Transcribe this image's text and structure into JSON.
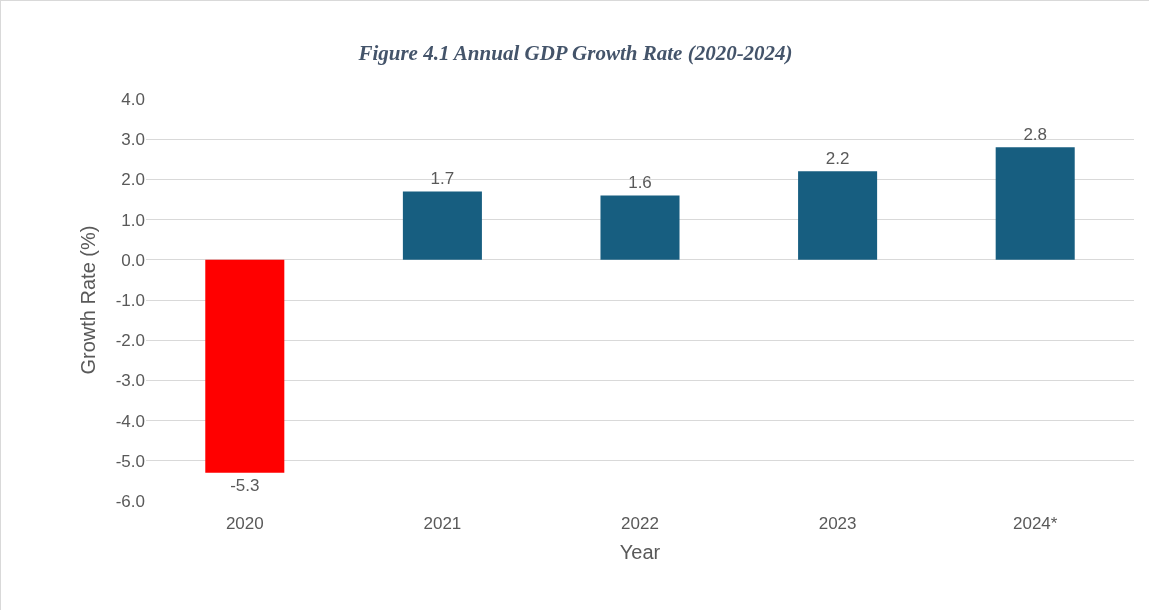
{
  "chart_data": {
    "type": "bar",
    "title": "Figure 4.1 Annual GDP Growth Rate (2020-2024)",
    "xlabel": "Year",
    "ylabel": "Growth Rate (%)",
    "categories": [
      "2020",
      "2021",
      "2022",
      "2023",
      "2024*"
    ],
    "values": [
      -5.3,
      1.7,
      1.6,
      2.2,
      2.8
    ],
    "colors": [
      "#ff0000",
      "#175e80",
      "#175e80",
      "#175e80",
      "#175e80"
    ],
    "ylim": [
      -6,
      4
    ],
    "yticks": [
      {
        "value": 4,
        "label": "4.0"
      },
      {
        "value": 3,
        "label": "3.0"
      },
      {
        "value": 2,
        "label": "2.0"
      },
      {
        "value": 1,
        "label": "1.0"
      },
      {
        "value": 0,
        "label": "0.0"
      },
      {
        "value": -1,
        "label": "-1.0"
      },
      {
        "value": -2,
        "label": "-2.0"
      },
      {
        "value": -3,
        "label": "-3.0"
      },
      {
        "value": -4,
        "label": "-4.0"
      },
      {
        "value": -5,
        "label": "-5.0"
      },
      {
        "value": -6,
        "label": "-6.0"
      }
    ],
    "grid": "y",
    "data_labels": true
  }
}
